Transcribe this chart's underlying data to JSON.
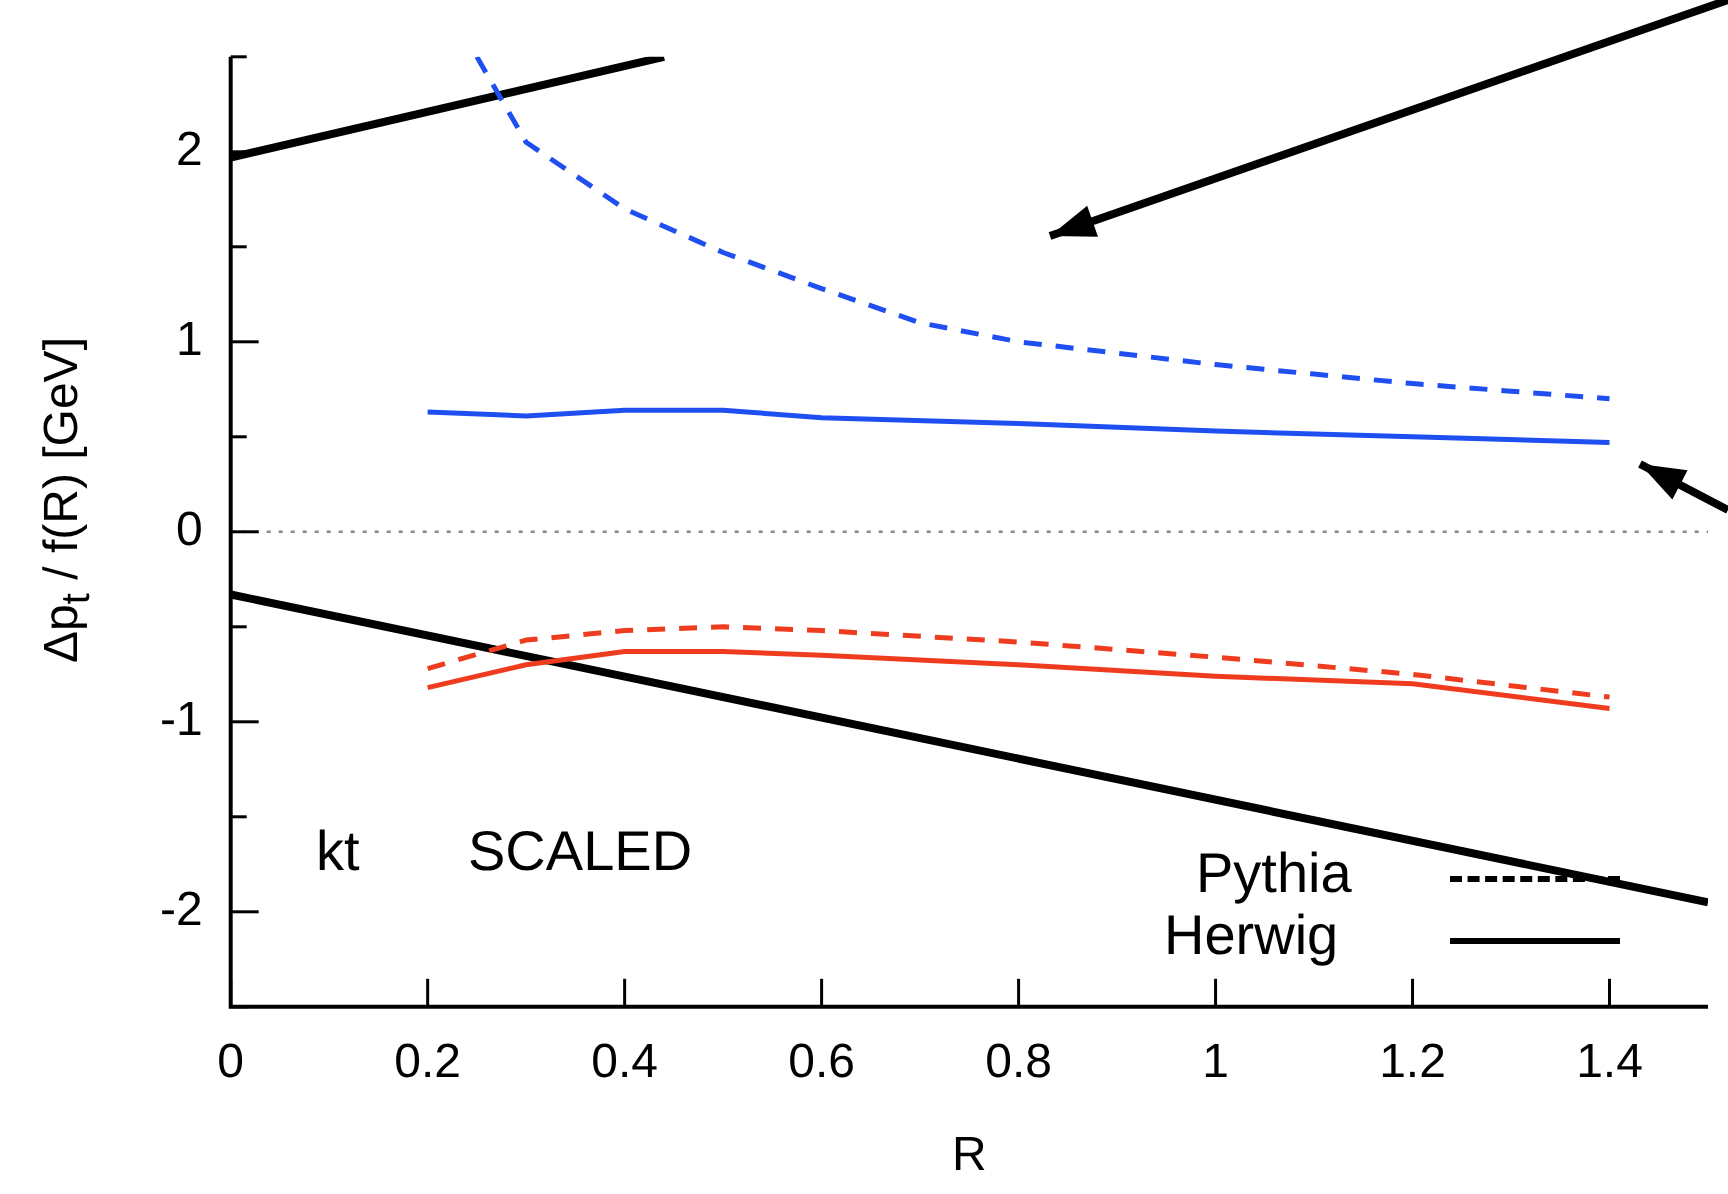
{
  "chart_data": {
    "type": "line",
    "xlabel": "R",
    "ylabel": "Δp$_{t}$ / f(R) [GeV]",
    "xlim": [
      0,
      1.5
    ],
    "xticks": [
      0,
      0.2,
      0.4,
      0.6,
      0.8,
      1,
      1.2,
      1.4
    ],
    "ylim": [
      -2.5,
      2.5
    ],
    "yticks": [
      {
        "value": -2.5,
        "label": null
      },
      -2,
      {
        "value": -1.5,
        "label": null
      },
      -1,
      {
        "value": -0.5,
        "label": null
      },
      0,
      {
        "value": 0.5,
        "label": null
      },
      1,
      {
        "value": 1.5,
        "label": null
      },
      2,
      {
        "value": 2.5,
        "label": null
      }
    ],
    "grid": false,
    "legend": false,
    "marker": "none",
    "series": [
      {
        "color": "#1f4ff0",
        "line_style": "dashed",
        "x": [
          0.25,
          0.3,
          0.4,
          0.5,
          0.6,
          0.7,
          0.8,
          0.9,
          1.0,
          1.1,
          1.2,
          1.3,
          1.4
        ],
        "values": [
          2.5,
          2.05,
          1.7,
          1.47,
          1.28,
          1.1,
          1.0,
          0.94,
          0.88,
          0.83,
          0.78,
          0.74,
          0.7
        ]
      },
      {
        "color": "#1f4ff0",
        "line_style": "solid",
        "x": [
          0.2,
          0.3,
          0.4,
          0.5,
          0.6,
          0.8,
          1.0,
          1.2,
          1.4
        ],
        "values": [
          0.63,
          0.61,
          0.64,
          0.64,
          0.6,
          0.57,
          0.53,
          0.5,
          0.47
        ]
      },
      {
        "color": "#f03c1e",
        "line_style": "dashed",
        "x": [
          0.2,
          0.3,
          0.4,
          0.5,
          0.6,
          0.8,
          1.0,
          1.2,
          1.4
        ],
        "values": [
          -0.72,
          -0.57,
          -0.52,
          -0.5,
          -0.52,
          -0.58,
          -0.66,
          -0.75,
          -0.87
        ]
      },
      {
        "color": "#f03c1e",
        "line_style": "solid",
        "x": [
          0.2,
          0.3,
          0.4,
          0.5,
          0.6,
          0.8,
          1.0,
          1.2,
          1.4
        ],
        "values": [
          -0.82,
          -0.7,
          -0.63,
          -0.63,
          -0.65,
          -0.7,
          -0.76,
          -0.8,
          -0.93
        ]
      },
      {
        "color": "#000000",
        "line_style": "solid",
        "x": [
          0,
          0.44
        ],
        "values": [
          1.97,
          2.5
        ]
      },
      {
        "color": "#000000",
        "line_style": "solid",
        "x": [
          0,
          1.5
        ],
        "values": [
          -0.33,
          -1.95
        ]
      }
    ],
    "ref_lines": [
      {
        "axis": "y",
        "value": 0,
        "color": "#888888",
        "line_style": "dotted"
      }
    ],
    "annotations": [
      "kt",
      "SCALED",
      "Pythia",
      "Herwig"
    ]
  }
}
